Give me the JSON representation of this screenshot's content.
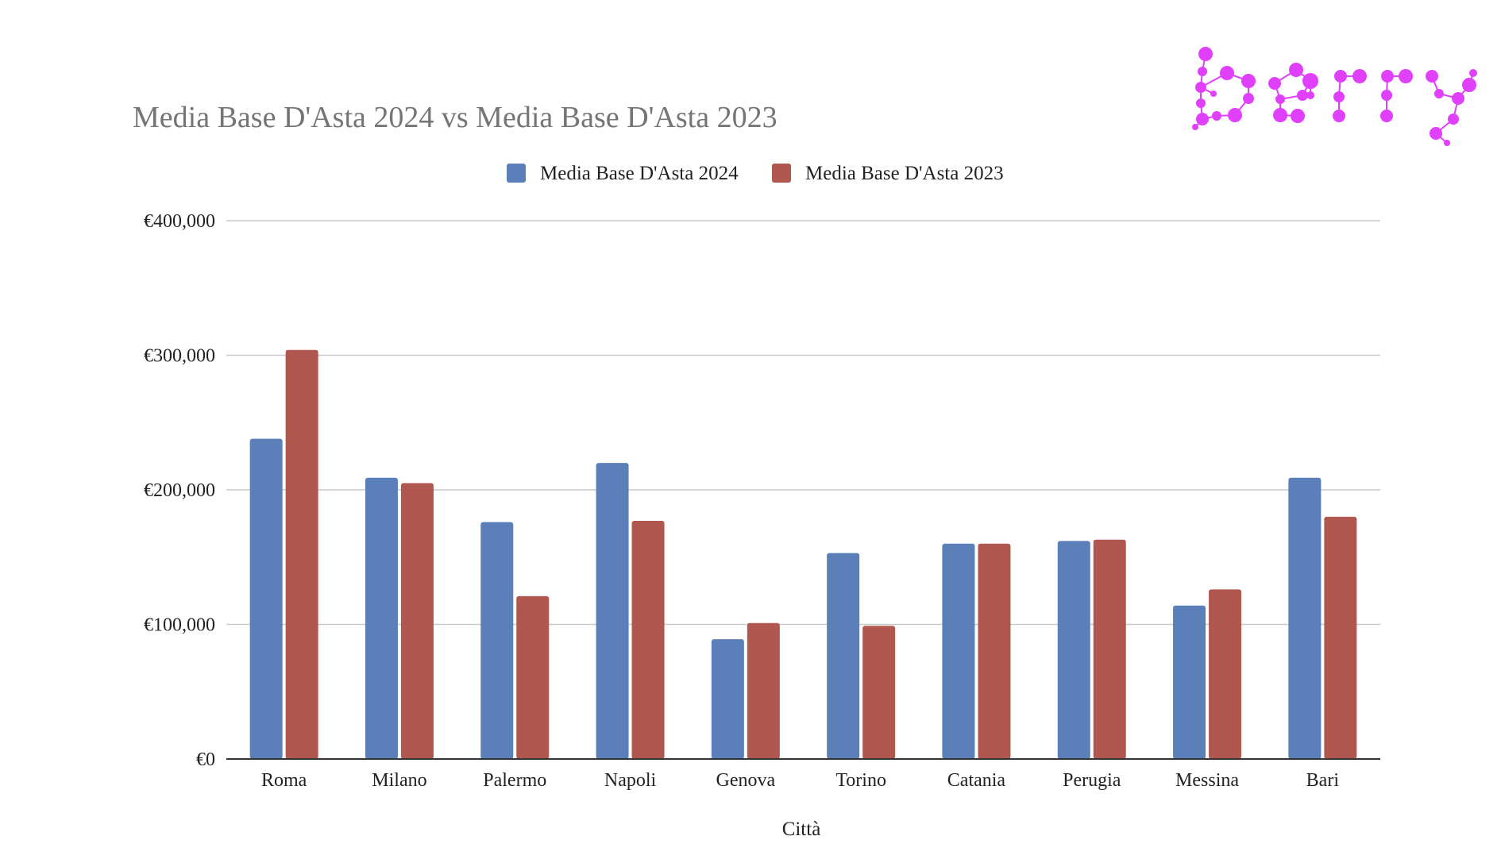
{
  "logo": {
    "text": "berry",
    "color": "#e040fb"
  },
  "chart_data": {
    "type": "bar",
    "title": "Media Base D'Asta 2024 vs Media Base D'Asta 2023",
    "xlabel": "Città",
    "ylabel": "",
    "ylim": [
      0,
      400000
    ],
    "yticks": [
      0,
      100000,
      200000,
      300000,
      400000
    ],
    "ytick_labels": [
      "€0",
      "€100,000",
      "€200,000",
      "€300,000",
      "€400,000"
    ],
    "grid": true,
    "legend_position": "top-center",
    "categories": [
      "Roma",
      "Milano",
      "Palermo",
      "Napoli",
      "Genova",
      "Torino",
      "Catania",
      "Perugia",
      "Messina",
      "Bari"
    ],
    "series": [
      {
        "name": "Media Base D'Asta 2024",
        "color": "#5b7fb9",
        "values": [
          238000,
          209000,
          176000,
          220000,
          89000,
          153000,
          160000,
          162000,
          114000,
          209000
        ]
      },
      {
        "name": "Media Base D'Asta 2023",
        "color": "#b05850",
        "values": [
          304000,
          205000,
          121000,
          177000,
          101000,
          99000,
          160000,
          163000,
          126000,
          180000
        ]
      }
    ]
  }
}
